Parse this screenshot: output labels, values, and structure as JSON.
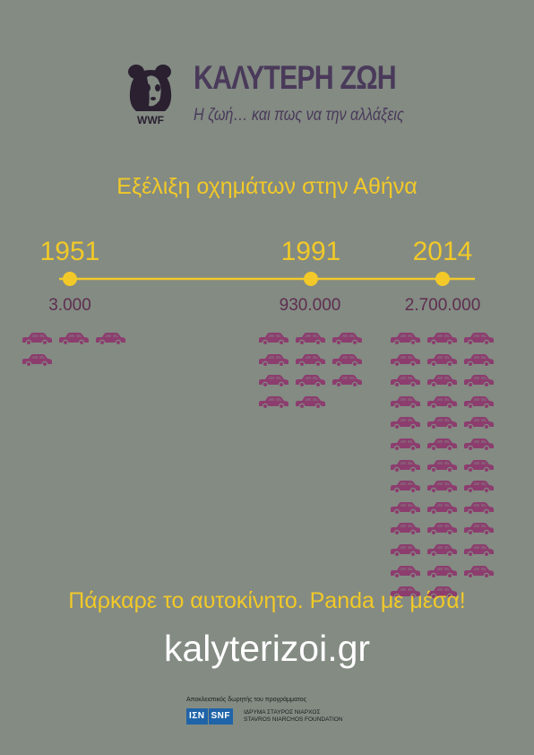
{
  "header": {
    "brand_title": "ΚΑΛΥΤΕΡΗ ΖΩΗ",
    "tagline": "Η ζωή… και πως να την αλλάξεις",
    "logo_text": "WWF"
  },
  "headline": "Εξέλιξη οχημάτων στην Αθήνα",
  "timeline": {
    "years": [
      "1951",
      "1991",
      "2014"
    ],
    "values": [
      "3.000",
      "930.000",
      "2.700.000"
    ],
    "car_icon_counts": [
      4,
      11,
      38
    ],
    "line_color": "#f2c928",
    "car_color": "#8c3d6e"
  },
  "slogan": "Πάρκαρε το αυτοκίνητο. Panda με μέσα!",
  "url": "kalyterizoi.gr",
  "sponsor": {
    "note": "Αποκλειστικός δωρητής του προγράμματος",
    "logo_gr": "ΙΣΝ",
    "logo_en": "SNF",
    "name_gr": "ΙΔΡΥΜΑ ΣΤΑΥΡΟΣ ΝΙΑΡΧΟΣ",
    "name_en": "STAVROS NIARCHOS FOUNDATION"
  }
}
